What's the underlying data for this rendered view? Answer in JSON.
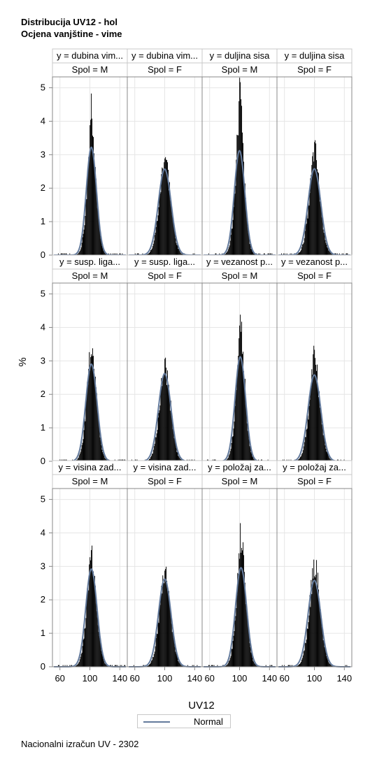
{
  "titles": [
    "Distribucija UV12 - hol",
    "Ocjena vanjštine - vime"
  ],
  "footer": "Nacionalni izračun UV - 2302",
  "legend": {
    "label": "Normal",
    "line_color": "#637a9c"
  },
  "chart_data": {
    "type": "histogram-panel",
    "xlabel": "UV12",
    "ylabel": "%",
    "xticks": [
      60,
      100,
      140
    ],
    "yticks": [
      0,
      1,
      2,
      3,
      4,
      5
    ],
    "xlim": [
      50,
      150
    ],
    "ylim": [
      0,
      5.2
    ],
    "grid": true,
    "rows": [
      {
        "headers": [
          "y = dubina vim...",
          "y = dubina vim...",
          "y = duljina sisa",
          "y = duljina sisa"
        ]
      },
      {
        "headers": [
          "y = susp. liga...",
          "y = susp. liga...",
          "y = vezanost p...",
          "y = vezanost p..."
        ]
      },
      {
        "headers": [
          "y = visina zad...",
          "y = visina zad...",
          "y = položaj za...",
          "y = položaj za..."
        ]
      }
    ],
    "columns": [
      "Spol = M",
      "Spol = F",
      "Spol = M",
      "Spol = F"
    ],
    "panels": [
      {
        "row": 0,
        "col": 0,
        "normal_mean": 102,
        "normal_peak": 3.22,
        "hist_peak": 4.6
      },
      {
        "row": 0,
        "col": 1,
        "normal_mean": 100,
        "normal_peak": 2.57,
        "hist_peak": 3.18
      },
      {
        "row": 0,
        "col": 2,
        "normal_mean": 100,
        "normal_peak": 3.12,
        "hist_peak": 5.15
      },
      {
        "row": 0,
        "col": 3,
        "normal_mean": 100,
        "normal_peak": 2.58,
        "hist_peak": 3.28
      },
      {
        "row": 1,
        "col": 0,
        "normal_mean": 102,
        "normal_peak": 2.9,
        "hist_peak": 3.6
      },
      {
        "row": 1,
        "col": 1,
        "normal_mean": 100,
        "normal_peak": 2.62,
        "hist_peak": 2.84
      },
      {
        "row": 1,
        "col": 2,
        "normal_mean": 101,
        "normal_peak": 3.12,
        "hist_peak": 4.35
      },
      {
        "row": 1,
        "col": 3,
        "normal_mean": 100,
        "normal_peak": 2.58,
        "hist_peak": 3.2
      },
      {
        "row": 2,
        "col": 0,
        "normal_mean": 102,
        "normal_peak": 2.92,
        "hist_peak": 3.45
      },
      {
        "row": 2,
        "col": 1,
        "normal_mean": 100,
        "normal_peak": 2.62,
        "hist_peak": 2.9
      },
      {
        "row": 2,
        "col": 2,
        "normal_mean": 102,
        "normal_peak": 2.96,
        "hist_peak": 4.25
      },
      {
        "row": 2,
        "col": 3,
        "normal_mean": 100,
        "normal_peak": 2.58,
        "hist_peak": 3.25
      }
    ]
  }
}
